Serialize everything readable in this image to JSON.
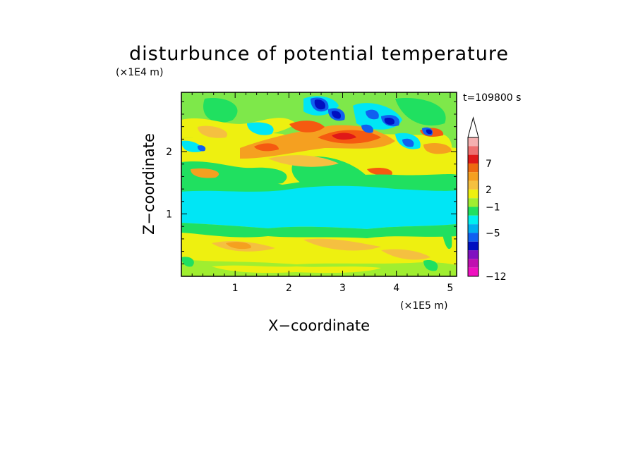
{
  "chart_data": {
    "type": "heatmap",
    "title": "disturbunce of potential temperature",
    "time_label": "t=109800 s",
    "xlabel": "X−coordinate",
    "ylabel": "Z−coordinate",
    "x_unit": "(×1E5 m)",
    "y_unit": "(×1E4 m)",
    "xlim": [
      0,
      5.12
    ],
    "ylim": [
      0,
      2.95
    ],
    "x_ticks": [
      "1",
      "2",
      "3",
      "4",
      "5"
    ],
    "y_ticks": [
      "1",
      "2"
    ],
    "colorbar": {
      "extend": "max",
      "tick_labels": [
        "7",
        "2",
        "−1",
        "−5",
        "−12"
      ],
      "colors_top_to_bottom": [
        "#f5b0b0",
        "#ee7070",
        "#e01818",
        "#ee6a10",
        "#f5a020",
        "#f5c040",
        "#eef010",
        "#a0ee30",
        "#20e060",
        "#00f0f0",
        "#00b0f0",
        "#1060f0",
        "#0010c0",
        "#8010c0",
        "#c010b0",
        "#f010c0"
      ]
    },
    "color_meaning": {
      "#00e6f5": "about -1 (cyan band near z=1.0-1.3 x1E4 m)",
      "#0010c0": "about -5 (dark blue cells near x=2.5-4.5, z=2.2-2.9)",
      "#f55a10": "about 4 (orange ridges near x=2-3.5, z=2.2-2.5)"
    }
  }
}
